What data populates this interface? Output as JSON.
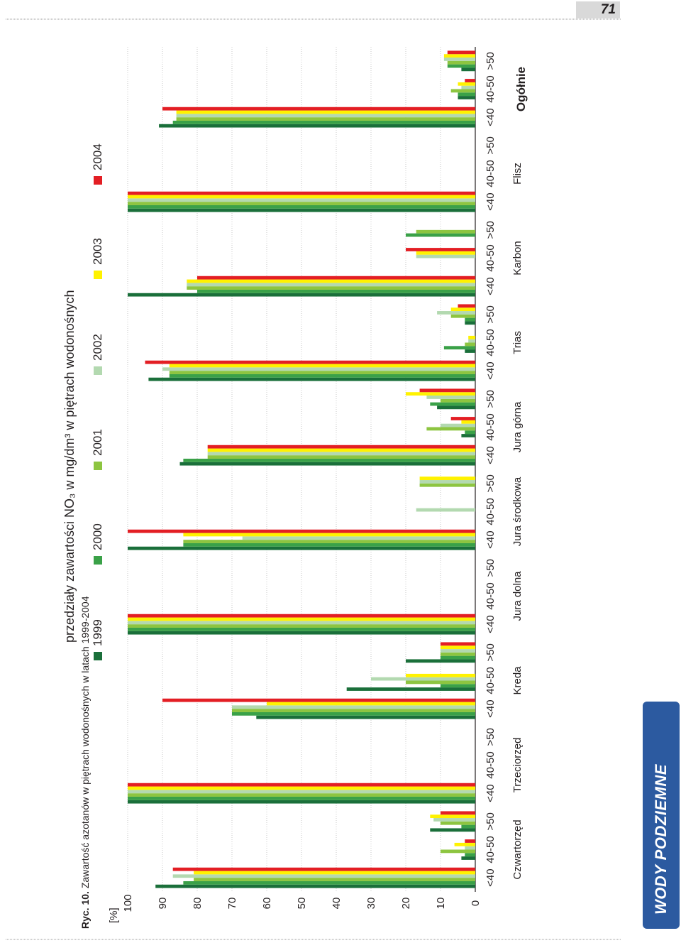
{
  "page": {
    "number": "71",
    "chapter_tab": "WODY PODZIEMNE"
  },
  "caption": {
    "prefix": "Ryc. 10.",
    "text": "Zawartość azotanów w piętrach wodonośnych w latach 1999-2004"
  },
  "colors": {
    "1999": "#1a6f3a",
    "2000": "#3aa148",
    "2001": "#8dc540",
    "2002": "#b3d9b0",
    "2003": "#fff200",
    "2004": "#e31e24",
    "grid": "#bdbdbd",
    "axis": "#231f20",
    "tab": "#2c5aa0"
  },
  "chart_data": {
    "type": "bar",
    "orientation": "horizontal-bars, page rotated 90deg",
    "title": "przedziały zawartości NO₃ w mg/dm³ w piętrach wodonośnych",
    "ylabel": "[%]",
    "ylim": [
      0,
      100
    ],
    "yticks": [
      "0",
      "10",
      "20",
      "30",
      "40",
      "50",
      "60",
      "70",
      "80",
      "90",
      "100"
    ],
    "grid": true,
    "legend_position": "top",
    "series_names": [
      "1999",
      "2000",
      "2001",
      "2002",
      "2003",
      "2004"
    ],
    "groups": [
      {
        "name": "Czwartorzęd",
        "intervals": [
          {
            "label": "<40",
            "values": [
              92,
              84,
              81,
              87,
              81,
              87
            ]
          },
          {
            "label": "40-50",
            "values": [
              4,
              3,
              10,
              3,
              6,
              3
            ]
          },
          {
            "label": ">50",
            "values": [
              13,
              4,
              10,
              12,
              13,
              10
            ]
          }
        ]
      },
      {
        "name": "Trzeciorzęd",
        "intervals": [
          {
            "label": "<40",
            "values": [
              100,
              100,
              100,
              100,
              100,
              100
            ]
          },
          {
            "label": "40-50",
            "values": [
              0,
              0,
              0,
              0,
              0,
              0
            ]
          },
          {
            "label": ">50",
            "values": [
              0,
              0,
              0,
              0,
              0,
              0
            ]
          }
        ]
      },
      {
        "name": "Kreda",
        "intervals": [
          {
            "label": "<40",
            "values": [
              63,
              70,
              70,
              70,
              60,
              90
            ]
          },
          {
            "label": "40-50",
            "values": [
              37,
              10,
              20,
              30,
              20,
              0
            ]
          },
          {
            "label": ">50",
            "values": [
              20,
              10,
              10,
              10,
              10,
              10
            ]
          }
        ]
      },
      {
        "name": "Jura dolna",
        "intervals": [
          {
            "label": "<40",
            "values": [
              100,
              100,
              100,
              100,
              100,
              100
            ]
          },
          {
            "label": "40-50",
            "values": [
              0,
              0,
              0,
              0,
              0,
              0
            ]
          },
          {
            "label": ">50",
            "values": [
              0,
              0,
              0,
              0,
              0,
              0
            ]
          }
        ]
      },
      {
        "name": "Jura środkowa",
        "intervals": [
          {
            "label": "<40",
            "values": [
              100,
              84,
              84,
              67,
              84,
              100
            ]
          },
          {
            "label": "40-50",
            "values": [
              0,
              0,
              0,
              17,
              0,
              0
            ]
          },
          {
            "label": ">50",
            "values": [
              0,
              0,
              16,
              16,
              16,
              0
            ]
          }
        ]
      },
      {
        "name": "Jura górna",
        "intervals": [
          {
            "label": "<40",
            "values": [
              85,
              84,
              77,
              77,
              77,
              77
            ]
          },
          {
            "label": "40-50",
            "values": [
              4,
              3,
              14,
              10,
              4,
              7
            ]
          },
          {
            "label": ">50",
            "values": [
              11,
              13,
              10,
              14,
              20,
              16
            ]
          }
        ]
      },
      {
        "name": "Trias",
        "intervals": [
          {
            "label": "<40",
            "values": [
              94,
              88,
              88,
              90,
              88,
              95
            ]
          },
          {
            "label": "40-50",
            "values": [
              3,
              9,
              3,
              2,
              2,
              0
            ]
          },
          {
            "label": ">50",
            "values": [
              3,
              3,
              7,
              11,
              7,
              5
            ]
          }
        ]
      },
      {
        "name": "Karbon",
        "intervals": [
          {
            "label": "<40",
            "values": [
              100,
              80,
              83,
              83,
              83,
              80
            ]
          },
          {
            "label": "40-50",
            "values": [
              0,
              0,
              0,
              17,
              17,
              20
            ]
          },
          {
            "label": ">50",
            "values": [
              0,
              20,
              17,
              0,
              0,
              0
            ]
          }
        ]
      },
      {
        "name": "Flisz",
        "intervals": [
          {
            "label": "<40",
            "values": [
              100,
              100,
              100,
              100,
              100,
              100
            ]
          },
          {
            "label": "40-50",
            "values": [
              0,
              0,
              0,
              0,
              0,
              0
            ]
          },
          {
            "label": ">50",
            "values": [
              0,
              0,
              0,
              0,
              0,
              0
            ]
          }
        ]
      },
      {
        "name": "Ogółnie",
        "intervals": [
          {
            "label": "<40",
            "values": [
              91,
              87,
              86,
              86,
              86,
              90
            ]
          },
          {
            "label": "40-50",
            "values": [
              5,
              5,
              7,
              4,
              5,
              3
            ]
          },
          {
            "label": ">50",
            "values": [
              4,
              8,
              8,
              9,
              9,
              8
            ]
          }
        ]
      }
    ]
  }
}
